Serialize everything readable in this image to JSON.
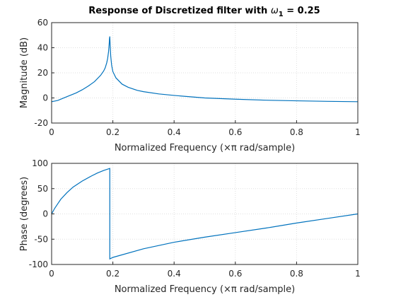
{
  "figure": {
    "title_main": "Response of Discretized filter with ",
    "title_symbol": "ω",
    "title_sub": "1",
    "title_tail": " = 0.25"
  },
  "chart_data": [
    {
      "type": "line",
      "name": "magnitude",
      "xlabel": "Normalized Frequency  (×π rad/sample)",
      "ylabel": "Magnitude (dB)",
      "xlim": [
        0,
        1
      ],
      "ylim": [
        -20,
        60
      ],
      "xticks": [
        0,
        0.2,
        0.4,
        0.6,
        0.8,
        1
      ],
      "xtick_labels": [
        "0",
        "0.2",
        "0.4",
        "0.6",
        "0.8",
        "1"
      ],
      "yticks": [
        -20,
        0,
        20,
        40,
        60
      ],
      "ytick_labels": [
        "-20",
        "0",
        "20",
        "40",
        "60"
      ],
      "grid": true,
      "series": [
        {
          "x": [
            0,
            0.02,
            0.05,
            0.08,
            0.1,
            0.12,
            0.14,
            0.16,
            0.17,
            0.175,
            0.18,
            0.183,
            0.186,
            0.188,
            0.189,
            0.19,
            0.191,
            0.193,
            0.196,
            0.2,
            0.21,
            0.23,
            0.25,
            0.28,
            0.3,
            0.35,
            0.4,
            0.45,
            0.5,
            0.6,
            0.7,
            0.8,
            0.9,
            1
          ],
          "y": [
            -3,
            -2,
            1,
            4,
            6.5,
            9.5,
            13,
            18,
            21.5,
            24,
            28,
            31.5,
            37,
            43,
            47,
            49,
            43,
            33.5,
            26,
            21,
            16,
            11,
            8.5,
            6,
            5,
            3.2,
            2,
            1,
            0,
            -1,
            -1.8,
            -2.3,
            -2.7,
            -3
          ]
        }
      ]
    },
    {
      "type": "line",
      "name": "phase",
      "xlabel": "Normalized Frequency  (×π rad/sample)",
      "ylabel": "Phase (degrees)",
      "xlim": [
        0,
        1
      ],
      "ylim": [
        -100,
        100
      ],
      "xticks": [
        0,
        0.2,
        0.4,
        0.6,
        0.8,
        1
      ],
      "xtick_labels": [
        "0",
        "0.2",
        "0.4",
        "0.6",
        "0.8",
        "1"
      ],
      "yticks": [
        -100,
        -50,
        0,
        50,
        100
      ],
      "ytick_labels": [
        "-100",
        "-50",
        "0",
        "50",
        "100"
      ],
      "grid": true,
      "series": [
        {
          "x": [
            0,
            0.01,
            0.02,
            0.03,
            0.05,
            0.07,
            0.1,
            0.13,
            0.15,
            0.17,
            0.19,
            0.19,
            0.2,
            0.3,
            0.4,
            0.5,
            0.6,
            0.7,
            0.8,
            0.9,
            1
          ],
          "y": [
            0,
            11,
            20,
            29,
            42,
            53,
            65,
            75,
            81,
            86,
            90,
            -89,
            -86,
            -69,
            -56,
            -46,
            -37,
            -28,
            -18,
            -9,
            0
          ]
        }
      ]
    }
  ]
}
